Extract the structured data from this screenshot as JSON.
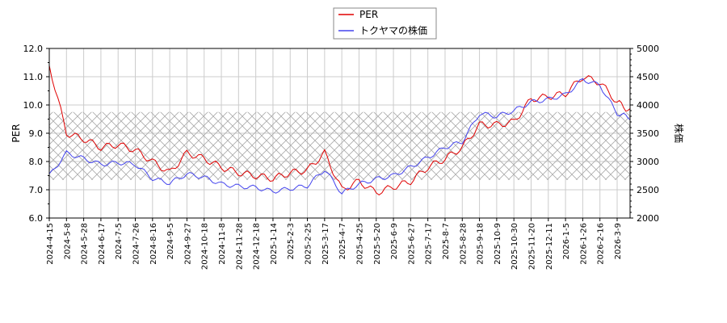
{
  "legend": {
    "items": [
      {
        "label": "PER",
        "color": "#e00000"
      },
      {
        "label": "トクヤマの株価",
        "color": "#4444ee"
      }
    ]
  },
  "axes": {
    "left_label": "PER",
    "right_label": "株価",
    "left_ticks": [
      "12.0",
      "11.0",
      "10.0",
      "9.0",
      "8.0",
      "7.0",
      "6.0"
    ],
    "right_ticks": [
      "5000",
      "4500",
      "4000",
      "3500",
      "3000",
      "2500",
      "2000"
    ]
  },
  "chart_data": {
    "type": "line",
    "title": "",
    "xlabel": "",
    "ylabel": "PER",
    "y2label": "株価",
    "ylim": [
      6.0,
      12.0
    ],
    "y2lim": [
      2000,
      5000
    ],
    "grid": true,
    "legend_position": "top-center",
    "shaded_band": {
      "ylim_per": [
        7.35,
        9.75
      ],
      "pattern": "crosshatch"
    },
    "categories": [
      "2024-4-15",
      "2024-5-8",
      "2024-5-28",
      "2024-6-17",
      "2024-7-5",
      "2024-7-26",
      "2024-8-16",
      "2024-9-5",
      "2024-9-27",
      "2024-10-18",
      "2024-11-8",
      "2024-11-28",
      "2024-12-18",
      "2025-1-14",
      "2025-2-3",
      "2025-2-25",
      "2025-3-17",
      "2025-4-7",
      "2025-4-25",
      "2025-5-20",
      "2025-6-9",
      "2025-6-27",
      "2025-7-17",
      "2025-8-7",
      "2025-8-28",
      "2025-9-18",
      "2025-10-9",
      "2025-10-30",
      "2025-11-20",
      "2025-12-11",
      "2026-1-5",
      "2026-1-26",
      "2026-2-16",
      "2026-3-9",
      "2026-3-30"
    ],
    "series": [
      {
        "name": "PER",
        "axis": "left",
        "color": "#e00000",
        "values": [
          11.4,
          9.0,
          8.8,
          8.5,
          8.6,
          8.4,
          8.0,
          7.6,
          8.3,
          8.1,
          7.8,
          7.6,
          7.5,
          7.4,
          7.6,
          7.7,
          8.3,
          7.0,
          7.3,
          6.9,
          7.1,
          7.3,
          7.8,
          8.1,
          8.5,
          9.3,
          9.3,
          9.4,
          10.2,
          10.3,
          10.4,
          11.0,
          10.8,
          10.1,
          9.8
        ]
      },
      {
        "name": "トクヤマの株価",
        "axis": "right",
        "color": "#4444ee",
        "values": [
          2750,
          3150,
          3050,
          2950,
          2980,
          2950,
          2700,
          2620,
          2780,
          2720,
          2600,
          2560,
          2540,
          2470,
          2520,
          2570,
          2860,
          2440,
          2600,
          2690,
          2750,
          2900,
          3070,
          3250,
          3350,
          3850,
          3800,
          3900,
          4050,
          4100,
          4180,
          4450,
          4350,
          3850,
          3780
        ]
      }
    ]
  }
}
